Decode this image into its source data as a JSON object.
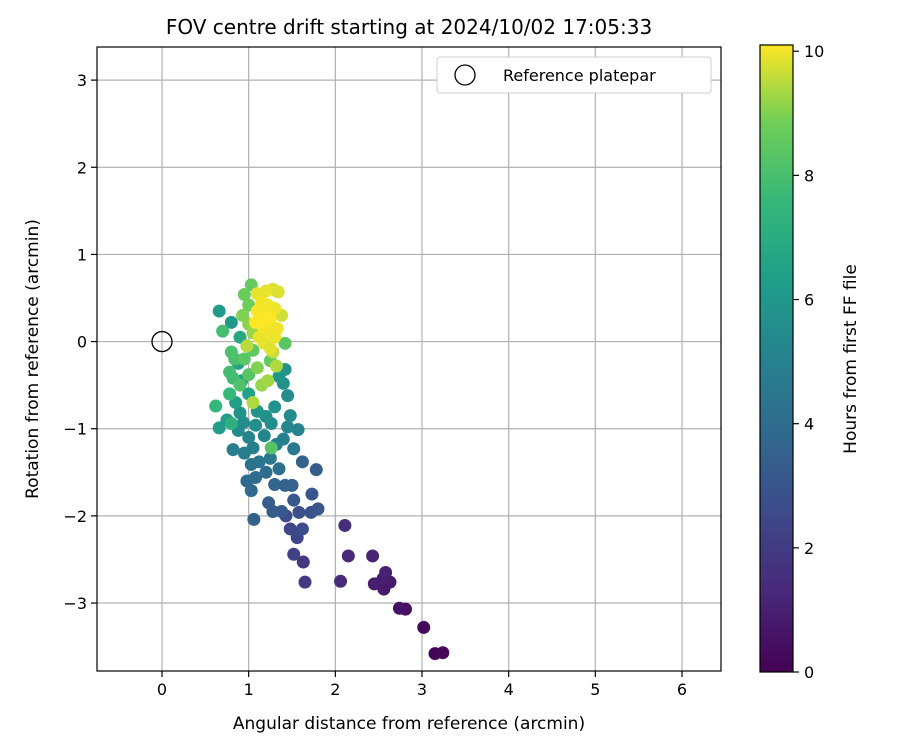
{
  "chart_data": {
    "type": "scatter",
    "title": "FOV centre drift starting at 2024/10/02 17:05:33",
    "xlabel": "Angular distance from reference (arcmin)",
    "ylabel": "Rotation from reference (arcmin)",
    "xlim": [
      -0.75,
      6.45
    ],
    "ylim": [
      -3.78,
      3.38
    ],
    "xticks": [
      0,
      1,
      2,
      3,
      4,
      5,
      6
    ],
    "yticks": [
      -3,
      -2,
      -1,
      0,
      1,
      2,
      3
    ],
    "grid": true,
    "legend": {
      "placement": "upper right",
      "entries": [
        "Reference platepar"
      ]
    },
    "reference_point": {
      "x": 0,
      "y": 0
    },
    "colorbar": {
      "label": "Hours from first FF file",
      "min": 0,
      "max": 10.1,
      "ticks": [
        0,
        2,
        4,
        6,
        8,
        10
      ],
      "colormap": "viridis"
    },
    "points": [
      {
        "x": 3.15,
        "y": -3.58,
        "h": 0.1
      },
      {
        "x": 3.24,
        "y": -3.57,
        "h": 0.15
      },
      {
        "x": 3.02,
        "y": -3.28,
        "h": 0.3
      },
      {
        "x": 2.81,
        "y": -3.07,
        "h": 0.5
      },
      {
        "x": 2.74,
        "y": -3.06,
        "h": 0.55
      },
      {
        "x": 2.56,
        "y": -2.84,
        "h": 0.8
      },
      {
        "x": 2.45,
        "y": -2.78,
        "h": 0.9
      },
      {
        "x": 2.63,
        "y": -2.76,
        "h": 0.85
      },
      {
        "x": 2.55,
        "y": -2.72,
        "h": 1.0
      },
      {
        "x": 2.58,
        "y": -2.65,
        "h": 1.05
      },
      {
        "x": 2.43,
        "y": -2.46,
        "h": 1.2
      },
      {
        "x": 2.15,
        "y": -2.46,
        "h": 1.3
      },
      {
        "x": 2.06,
        "y": -2.75,
        "h": 1.4
      },
      {
        "x": 2.11,
        "y": -2.11,
        "h": 1.5
      },
      {
        "x": 1.65,
        "y": -2.76,
        "h": 2.0
      },
      {
        "x": 1.63,
        "y": -2.53,
        "h": 1.9
      },
      {
        "x": 1.52,
        "y": -2.44,
        "h": 2.2
      },
      {
        "x": 1.56,
        "y": -2.25,
        "h": 2.4
      },
      {
        "x": 1.62,
        "y": -2.15,
        "h": 2.6
      },
      {
        "x": 1.48,
        "y": -2.15,
        "h": 2.5
      },
      {
        "x": 1.43,
        "y": -2.0,
        "h": 2.7
      },
      {
        "x": 1.58,
        "y": -1.96,
        "h": 2.8
      },
      {
        "x": 1.72,
        "y": -1.96,
        "h": 2.9
      },
      {
        "x": 1.8,
        "y": -1.92,
        "h": 3.0
      },
      {
        "x": 1.52,
        "y": -1.82,
        "h": 3.1
      },
      {
        "x": 1.73,
        "y": -1.75,
        "h": 3.0
      },
      {
        "x": 1.38,
        "y": -1.95,
        "h": 3.2
      },
      {
        "x": 1.28,
        "y": -1.95,
        "h": 3.3
      },
      {
        "x": 1.23,
        "y": -1.85,
        "h": 3.4
      },
      {
        "x": 1.06,
        "y": -2.04,
        "h": 3.6
      },
      {
        "x": 1.78,
        "y": -1.47,
        "h": 3.4
      },
      {
        "x": 1.62,
        "y": -1.38,
        "h": 3.5
      },
      {
        "x": 1.5,
        "y": -1.65,
        "h": 3.5
      },
      {
        "x": 1.42,
        "y": -1.65,
        "h": 3.6
      },
      {
        "x": 1.3,
        "y": -1.64,
        "h": 3.7
      },
      {
        "x": 1.03,
        "y": -1.71,
        "h": 3.8
      },
      {
        "x": 0.98,
        "y": -1.6,
        "h": 3.9
      },
      {
        "x": 1.08,
        "y": -1.56,
        "h": 4.0
      },
      {
        "x": 1.2,
        "y": -1.5,
        "h": 4.1
      },
      {
        "x": 1.35,
        "y": -1.46,
        "h": 4.2
      },
      {
        "x": 1.03,
        "y": -1.41,
        "h": 4.3
      },
      {
        "x": 1.12,
        "y": -1.38,
        "h": 4.4
      },
      {
        "x": 1.25,
        "y": -1.34,
        "h": 4.5
      },
      {
        "x": 1.52,
        "y": -1.23,
        "h": 4.6
      },
      {
        "x": 0.82,
        "y": -1.24,
        "h": 4.8
      },
      {
        "x": 0.95,
        "y": -1.28,
        "h": 4.7
      },
      {
        "x": 1.05,
        "y": -1.22,
        "h": 4.9
      },
      {
        "x": 1.32,
        "y": -1.18,
        "h": 5.0
      },
      {
        "x": 1.4,
        "y": -1.12,
        "h": 5.0
      },
      {
        "x": 1.0,
        "y": -1.1,
        "h": 5.1
      },
      {
        "x": 1.18,
        "y": -1.08,
        "h": 5.2
      },
      {
        "x": 1.57,
        "y": -1.01,
        "h": 5.1
      },
      {
        "x": 1.45,
        "y": -0.98,
        "h": 5.3
      },
      {
        "x": 0.88,
        "y": -1.02,
        "h": 5.4
      },
      {
        "x": 0.94,
        "y": -0.93,
        "h": 5.5
      },
      {
        "x": 1.08,
        "y": -0.96,
        "h": 5.6
      },
      {
        "x": 1.26,
        "y": -0.94,
        "h": 5.6
      },
      {
        "x": 1.48,
        "y": -0.85,
        "h": 5.5
      },
      {
        "x": 1.2,
        "y": -0.86,
        "h": 5.7
      },
      {
        "x": 0.9,
        "y": -0.82,
        "h": 5.8
      },
      {
        "x": 1.1,
        "y": -0.8,
        "h": 5.9
      },
      {
        "x": 1.3,
        "y": -0.75,
        "h": 5.8
      },
      {
        "x": 1.45,
        "y": -0.62,
        "h": 5.6
      },
      {
        "x": 1.4,
        "y": -0.48,
        "h": 5.7
      },
      {
        "x": 1.42,
        "y": -0.32,
        "h": 5.8
      },
      {
        "x": 1.35,
        "y": -0.4,
        "h": 6.0
      },
      {
        "x": 0.66,
        "y": -0.99,
        "h": 6.2
      },
      {
        "x": 0.75,
        "y": -0.9,
        "h": 6.3
      },
      {
        "x": 0.85,
        "y": -0.7,
        "h": 6.4
      },
      {
        "x": 1.0,
        "y": -0.6,
        "h": 6.5
      },
      {
        "x": 0.92,
        "y": -0.45,
        "h": 6.6
      },
      {
        "x": 0.88,
        "y": -0.25,
        "h": 6.5
      },
      {
        "x": 0.8,
        "y": 0.22,
        "h": 6.1
      },
      {
        "x": 0.66,
        "y": 0.35,
        "h": 6.2
      },
      {
        "x": 0.9,
        "y": 0.05,
        "h": 6.8
      },
      {
        "x": 0.98,
        "y": -0.05,
        "h": 6.9
      },
      {
        "x": 0.62,
        "y": -0.74,
        "h": 7.5
      },
      {
        "x": 0.8,
        "y": -0.94,
        "h": 7.2
      },
      {
        "x": 0.78,
        "y": -0.6,
        "h": 7.6
      },
      {
        "x": 0.82,
        "y": -0.42,
        "h": 7.8
      },
      {
        "x": 0.78,
        "y": -0.35,
        "h": 7.9
      },
      {
        "x": 0.84,
        "y": -0.2,
        "h": 8.0
      },
      {
        "x": 0.8,
        "y": -0.12,
        "h": 8.1
      },
      {
        "x": 0.7,
        "y": 0.12,
        "h": 7.9
      },
      {
        "x": 0.9,
        "y": -0.5,
        "h": 8.2
      },
      {
        "x": 1.0,
        "y": -0.38,
        "h": 8.3
      },
      {
        "x": 0.95,
        "y": -0.2,
        "h": 8.4
      },
      {
        "x": 1.05,
        "y": -0.1,
        "h": 8.5
      },
      {
        "x": 1.25,
        "y": -0.22,
        "h": 8.6
      },
      {
        "x": 1.42,
        "y": -0.02,
        "h": 8.4
      },
      {
        "x": 1.26,
        "y": -1.22,
        "h": 8.3
      },
      {
        "x": 0.95,
        "y": 0.54,
        "h": 8.7
      },
      {
        "x": 1.03,
        "y": 0.65,
        "h": 8.6
      },
      {
        "x": 1.0,
        "y": 0.42,
        "h": 8.8
      },
      {
        "x": 0.93,
        "y": 0.3,
        "h": 9.0
      },
      {
        "x": 1.0,
        "y": 0.2,
        "h": 9.1
      },
      {
        "x": 1.05,
        "y": 0.1,
        "h": 9.2
      },
      {
        "x": 1.1,
        "y": -0.3,
        "h": 9.0
      },
      {
        "x": 1.15,
        "y": -0.5,
        "h": 9.2
      },
      {
        "x": 1.05,
        "y": -0.7,
        "h": 9.4
      },
      {
        "x": 1.22,
        "y": -0.45,
        "h": 9.3
      },
      {
        "x": 0.98,
        "y": -0.05,
        "h": 9.5
      },
      {
        "x": 1.32,
        "y": -0.28,
        "h": 9.4
      },
      {
        "x": 1.28,
        "y": -0.12,
        "h": 9.6
      },
      {
        "x": 1.38,
        "y": 0.3,
        "h": 9.7
      },
      {
        "x": 1.34,
        "y": 0.57,
        "h": 9.8
      },
      {
        "x": 1.28,
        "y": 0.6,
        "h": 9.8
      },
      {
        "x": 1.2,
        "y": 0.58,
        "h": 9.9
      },
      {
        "x": 1.1,
        "y": 0.55,
        "h": 9.9
      },
      {
        "x": 1.15,
        "y": 0.45,
        "h": 10.0
      },
      {
        "x": 1.22,
        "y": 0.42,
        "h": 10.0
      },
      {
        "x": 1.3,
        "y": 0.38,
        "h": 10.0
      },
      {
        "x": 1.1,
        "y": 0.35,
        "h": 10.05
      },
      {
        "x": 1.18,
        "y": 0.3,
        "h": 10.05
      },
      {
        "x": 1.25,
        "y": 0.26,
        "h": 10.1
      },
      {
        "x": 1.08,
        "y": 0.22,
        "h": 10.1
      },
      {
        "x": 1.16,
        "y": 0.18,
        "h": 10.1
      },
      {
        "x": 1.23,
        "y": 0.12,
        "h": 10.0
      },
      {
        "x": 1.12,
        "y": 0.05,
        "h": 9.95
      },
      {
        "x": 1.3,
        "y": 0.05,
        "h": 9.95
      },
      {
        "x": 1.18,
        "y": -0.02,
        "h": 9.9
      },
      {
        "x": 1.25,
        "y": -0.08,
        "h": 9.85
      },
      {
        "x": 1.33,
        "y": 0.15,
        "h": 10.0
      }
    ]
  }
}
